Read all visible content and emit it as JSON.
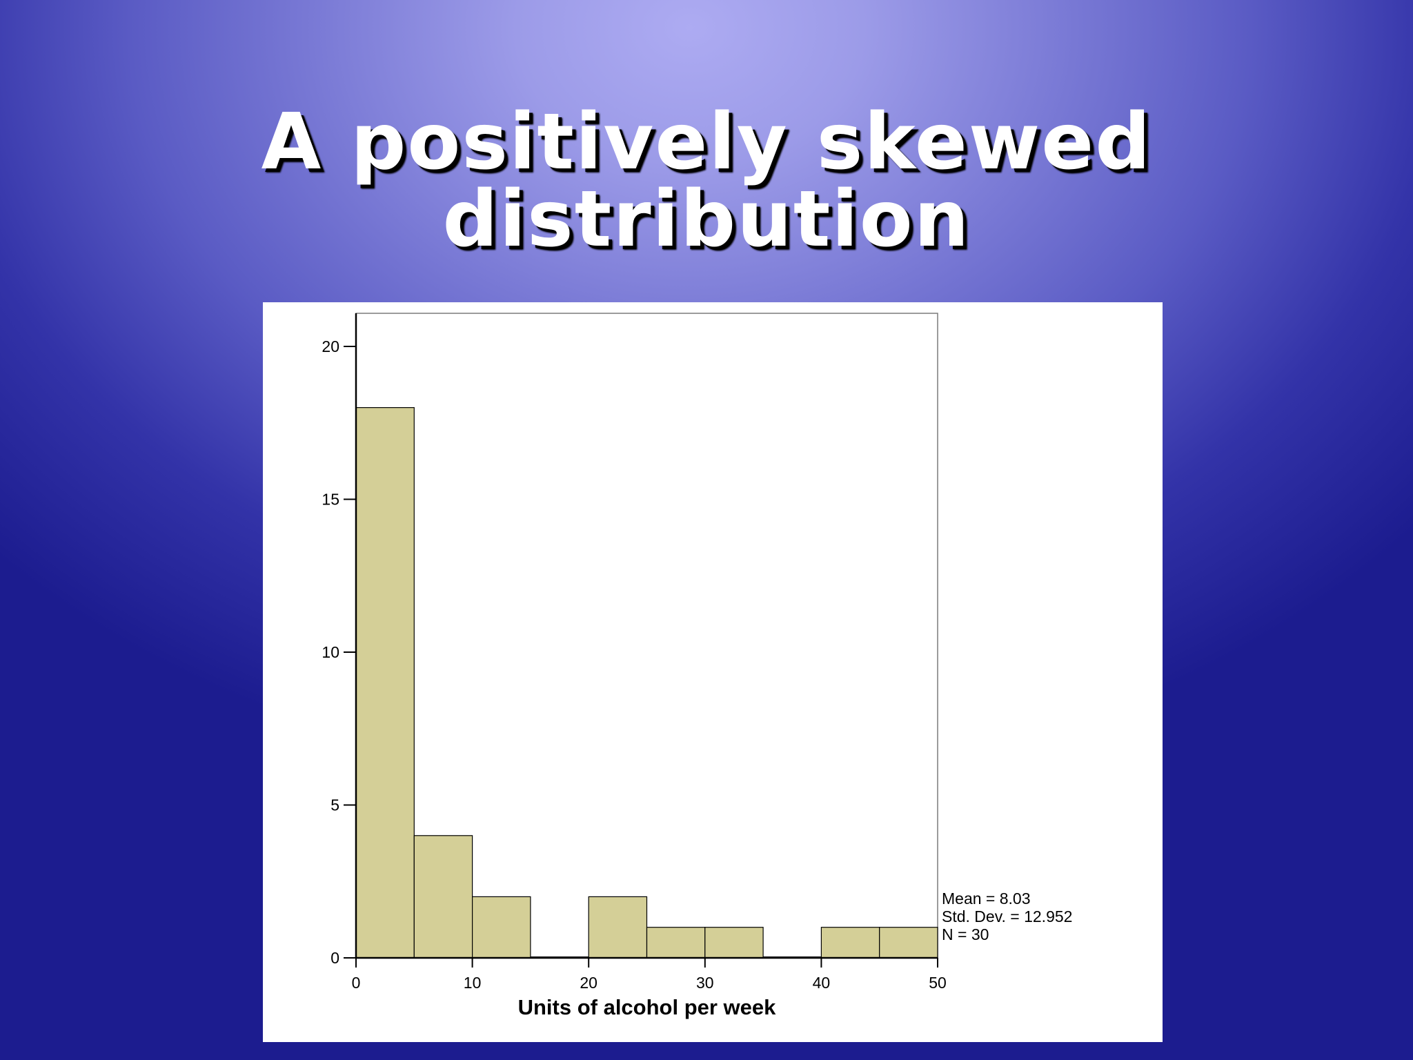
{
  "slide": {
    "title": "A positively skewed distribution"
  },
  "colors": {
    "bar_fill": "#d4cf97",
    "bar_stroke": "#000000",
    "axis": "#000000",
    "frame": "#7a7a7a"
  },
  "chart_data": {
    "type": "bar",
    "subtype": "histogram",
    "bins": [
      {
        "start": 0,
        "end": 5,
        "count": 18
      },
      {
        "start": 5,
        "end": 10,
        "count": 4
      },
      {
        "start": 10,
        "end": 15,
        "count": 2
      },
      {
        "start": 15,
        "end": 20,
        "count": 0
      },
      {
        "start": 20,
        "end": 25,
        "count": 2
      },
      {
        "start": 25,
        "end": 30,
        "count": 1
      },
      {
        "start": 30,
        "end": 35,
        "count": 1
      },
      {
        "start": 35,
        "end": 40,
        "count": 0
      },
      {
        "start": 40,
        "end": 45,
        "count": 1
      },
      {
        "start": 45,
        "end": 50,
        "count": 1
      }
    ],
    "xlabel": "Units of alcohol per week",
    "ylabel": "",
    "xlim": [
      0,
      50
    ],
    "ylim": [
      0,
      21
    ],
    "x_ticks": [
      0,
      10,
      20,
      30,
      40,
      50
    ],
    "y_ticks": [
      0,
      5,
      10,
      15,
      20
    ],
    "grid": false,
    "stats_box": {
      "placement": "bottom-right",
      "lines": [
        "Mean = 8.03",
        "Std. Dev. = 12.952",
        "N = 30"
      ]
    }
  }
}
